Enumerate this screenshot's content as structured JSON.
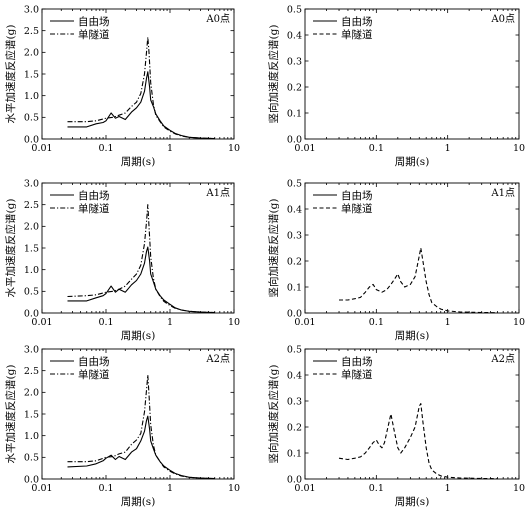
{
  "chart_data": [
    {
      "type": "line",
      "panel_tag": "A0点",
      "ylabel": "水平加速度反应谱(g)",
      "xlabel": "周期(s)",
      "xscale": "log",
      "xlim": [
        0.01,
        10
      ],
      "ylim": [
        0,
        3.0
      ],
      "yticks": [
        "0.0",
        "0.5",
        "1.0",
        "1.5",
        "2.0",
        "2.5",
        "3.0"
      ],
      "xticks": [
        "0.01",
        "0.1",
        "1",
        "10"
      ],
      "legend": [
        "自由场",
        "单隧道"
      ],
      "legend_position": "top-left",
      "series": [
        {
          "name": "自由场",
          "style": "solid",
          "x": [
            0.025,
            0.05,
            0.07,
            0.09,
            0.1,
            0.12,
            0.14,
            0.16,
            0.2,
            0.25,
            0.3,
            0.35,
            0.4,
            0.43,
            0.45,
            0.48,
            0.5,
            0.55,
            0.6,
            0.7,
            0.8,
            1.0,
            1.2,
            1.5,
            2,
            3,
            5
          ],
          "y": [
            0.28,
            0.28,
            0.35,
            0.38,
            0.42,
            0.6,
            0.48,
            0.52,
            0.45,
            0.62,
            0.72,
            0.85,
            1.1,
            1.4,
            1.55,
            1.2,
            0.9,
            0.75,
            0.58,
            0.42,
            0.3,
            0.2,
            0.13,
            0.08,
            0.04,
            0.02,
            0.01
          ]
        },
        {
          "name": "单隧道",
          "style": "dashdot",
          "x": [
            0.025,
            0.05,
            0.07,
            0.1,
            0.13,
            0.16,
            0.2,
            0.25,
            0.3,
            0.35,
            0.4,
            0.43,
            0.45,
            0.47,
            0.5,
            0.55,
            0.6,
            0.7,
            0.8,
            1.0,
            1.2,
            1.5,
            2,
            3,
            5
          ],
          "y": [
            0.4,
            0.4,
            0.42,
            0.48,
            0.5,
            0.55,
            0.6,
            0.75,
            0.85,
            1.05,
            1.5,
            2.0,
            2.35,
            2.0,
            1.3,
            0.8,
            0.55,
            0.4,
            0.28,
            0.18,
            0.12,
            0.07,
            0.04,
            0.02,
            0.01
          ]
        }
      ]
    },
    {
      "type": "line",
      "panel_tag": "A0点",
      "ylabel": "竖向加速度反应谱(g)",
      "xlabel": "周期(s)",
      "xscale": "log",
      "xlim": [
        0.01,
        10
      ],
      "ylim": [
        0,
        0.5
      ],
      "yticks": [
        "0.0",
        "0.1",
        "0.2",
        "0.3",
        "0.4",
        "0.5"
      ],
      "xticks": [
        "0.01",
        "0.1",
        "1",
        "10"
      ],
      "legend": [
        "自由场",
        "单隧道"
      ],
      "legend_position": "top-left",
      "series": [
        {
          "name": "自由场",
          "style": "solid",
          "x": [],
          "y": []
        },
        {
          "name": "单隧道",
          "style": "dashed",
          "x": [],
          "y": []
        }
      ]
    },
    {
      "type": "line",
      "panel_tag": "A1点",
      "ylabel": "水平加速度反应谱(g)",
      "xlabel": "周期(s)",
      "xscale": "log",
      "xlim": [
        0.01,
        10
      ],
      "ylim": [
        0,
        3.0
      ],
      "yticks": [
        "0.0",
        "0.5",
        "1.0",
        "1.5",
        "2.0",
        "2.5",
        "3.0"
      ],
      "xticks": [
        "0.01",
        "0.1",
        "1",
        "10"
      ],
      "legend": [
        "自由场",
        "单隧道"
      ],
      "legend_position": "top-left",
      "series": [
        {
          "name": "自由场",
          "style": "solid",
          "x": [
            0.025,
            0.05,
            0.07,
            0.09,
            0.1,
            0.12,
            0.14,
            0.16,
            0.2,
            0.25,
            0.3,
            0.35,
            0.4,
            0.43,
            0.45,
            0.48,
            0.5,
            0.55,
            0.6,
            0.7,
            0.8,
            1.0,
            1.2,
            1.5,
            2,
            3,
            5
          ],
          "y": [
            0.28,
            0.28,
            0.35,
            0.4,
            0.45,
            0.62,
            0.48,
            0.55,
            0.48,
            0.65,
            0.75,
            0.9,
            1.15,
            1.42,
            1.52,
            1.2,
            0.9,
            0.72,
            0.55,
            0.4,
            0.3,
            0.2,
            0.12,
            0.07,
            0.04,
            0.02,
            0.01
          ]
        },
        {
          "name": "单隧道",
          "style": "dashdot",
          "x": [
            0.025,
            0.05,
            0.07,
            0.1,
            0.13,
            0.16,
            0.2,
            0.25,
            0.3,
            0.35,
            0.4,
            0.43,
            0.45,
            0.47,
            0.5,
            0.55,
            0.6,
            0.7,
            0.8,
            1.0,
            1.2,
            1.5,
            2,
            3,
            5
          ],
          "y": [
            0.38,
            0.4,
            0.42,
            0.48,
            0.5,
            0.55,
            0.62,
            0.78,
            0.9,
            1.1,
            1.6,
            2.1,
            2.5,
            2.0,
            1.3,
            0.8,
            0.55,
            0.38,
            0.27,
            0.17,
            0.11,
            0.07,
            0.04,
            0.02,
            0.01
          ]
        }
      ]
    },
    {
      "type": "line",
      "panel_tag": "A1点",
      "ylabel": "竖向加速度反应谱(g)",
      "xlabel": "周期(s)",
      "xscale": "log",
      "xlim": [
        0.01,
        10
      ],
      "ylim": [
        0,
        0.5
      ],
      "yticks": [
        "0.0",
        "0.1",
        "0.2",
        "0.3",
        "0.4",
        "0.5"
      ],
      "xticks": [
        "0.01",
        "0.1",
        "1",
        "10"
      ],
      "legend": [
        "自由场",
        "单隧道"
      ],
      "legend_position": "top-left",
      "series": [
        {
          "name": "自由场",
          "style": "solid",
          "x": [],
          "y": []
        },
        {
          "name": "单隧道",
          "style": "dashed",
          "x": [
            0.03,
            0.04,
            0.05,
            0.06,
            0.07,
            0.08,
            0.09,
            0.1,
            0.12,
            0.14,
            0.16,
            0.18,
            0.2,
            0.22,
            0.25,
            0.3,
            0.35,
            0.4,
            0.42,
            0.45,
            0.5,
            0.55,
            0.6,
            0.7,
            0.8,
            1.0,
            1.5,
            2,
            3,
            5
          ],
          "y": [
            0.05,
            0.05,
            0.055,
            0.06,
            0.08,
            0.1,
            0.11,
            0.09,
            0.08,
            0.09,
            0.11,
            0.13,
            0.15,
            0.12,
            0.1,
            0.11,
            0.14,
            0.22,
            0.25,
            0.2,
            0.12,
            0.07,
            0.04,
            0.025,
            0.015,
            0.008,
            0.004,
            0.003,
            0.002,
            0.001
          ]
        }
      ]
    },
    {
      "type": "line",
      "panel_tag": "A2点",
      "ylabel": "水平加速度反应谱(g)",
      "xlabel": "周期(s)",
      "xscale": "log",
      "xlim": [
        0.01,
        10
      ],
      "ylim": [
        0,
        3.0
      ],
      "yticks": [
        "0.0",
        "0.5",
        "1.0",
        "1.5",
        "2.0",
        "2.5",
        "3.0"
      ],
      "xticks": [
        "0.01",
        "0.1",
        "1",
        "10"
      ],
      "legend": [
        "自由场",
        "单隧道"
      ],
      "legend_position": "top-left",
      "series": [
        {
          "name": "自由场",
          "style": "solid",
          "x": [
            0.025,
            0.05,
            0.07,
            0.09,
            0.1,
            0.12,
            0.14,
            0.16,
            0.2,
            0.25,
            0.3,
            0.35,
            0.4,
            0.43,
            0.45,
            0.48,
            0.5,
            0.55,
            0.6,
            0.7,
            0.8,
            1.0,
            1.2,
            1.5,
            2,
            3,
            5
          ],
          "y": [
            0.28,
            0.3,
            0.35,
            0.42,
            0.48,
            0.55,
            0.45,
            0.52,
            0.45,
            0.62,
            0.7,
            0.88,
            1.1,
            1.35,
            1.45,
            1.15,
            0.88,
            0.7,
            0.55,
            0.4,
            0.3,
            0.2,
            0.13,
            0.08,
            0.04,
            0.02,
            0.01
          ]
        },
        {
          "name": "单隧道",
          "style": "dashdot",
          "x": [
            0.025,
            0.05,
            0.07,
            0.1,
            0.13,
            0.16,
            0.2,
            0.25,
            0.3,
            0.35,
            0.4,
            0.43,
            0.45,
            0.47,
            0.5,
            0.55,
            0.6,
            0.7,
            0.8,
            1.0,
            1.2,
            1.5,
            2,
            3,
            5
          ],
          "y": [
            0.4,
            0.4,
            0.42,
            0.5,
            0.52,
            0.58,
            0.62,
            0.8,
            0.9,
            1.05,
            1.55,
            2.05,
            2.4,
            1.95,
            1.25,
            0.78,
            0.55,
            0.4,
            0.28,
            0.18,
            0.12,
            0.07,
            0.04,
            0.02,
            0.01
          ]
        }
      ]
    },
    {
      "type": "line",
      "panel_tag": "A2点",
      "ylabel": "竖向加速度反应谱(g)",
      "xlabel": "周期(s)",
      "xscale": "log",
      "xlim": [
        0.01,
        10
      ],
      "ylim": [
        0,
        0.5
      ],
      "yticks": [
        "0.0",
        "0.1",
        "0.2",
        "0.3",
        "0.4",
        "0.5"
      ],
      "xticks": [
        "0.01",
        "0.1",
        "1",
        "10"
      ],
      "legend": [
        "自由场",
        "单隧道"
      ],
      "legend_position": "top-left",
      "series": [
        {
          "name": "自由场",
          "style": "solid",
          "x": [],
          "y": []
        },
        {
          "name": "单隧道",
          "style": "dashed",
          "x": [
            0.03,
            0.04,
            0.05,
            0.06,
            0.07,
            0.08,
            0.09,
            0.1,
            0.11,
            0.12,
            0.13,
            0.14,
            0.16,
            0.18,
            0.2,
            0.22,
            0.25,
            0.3,
            0.35,
            0.4,
            0.42,
            0.45,
            0.5,
            0.55,
            0.6,
            0.7,
            0.8,
            1.0,
            1.5,
            2,
            3,
            5
          ],
          "y": [
            0.08,
            0.075,
            0.08,
            0.085,
            0.1,
            0.12,
            0.14,
            0.15,
            0.13,
            0.12,
            0.14,
            0.18,
            0.25,
            0.18,
            0.12,
            0.1,
            0.12,
            0.16,
            0.2,
            0.28,
            0.29,
            0.22,
            0.12,
            0.06,
            0.035,
            0.02,
            0.012,
            0.007,
            0.004,
            0.003,
            0.002,
            0.001
          ]
        }
      ]
    }
  ]
}
